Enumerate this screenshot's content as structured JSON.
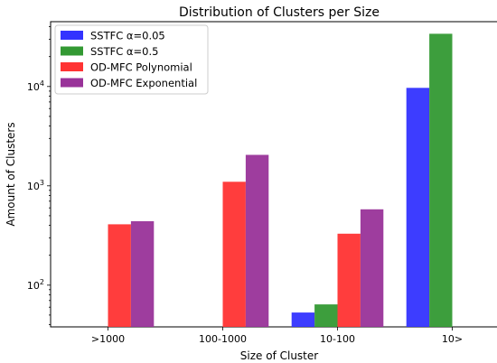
{
  "chart_data": {
    "type": "bar",
    "title": "Distribution of Clusters per Size",
    "xlabel": "Size of Cluster",
    "ylabel": "Amount of Clusters",
    "yscale": "log",
    "ylim": [
      38,
      45000
    ],
    "yticks": [
      {
        "value": 100,
        "base": "10",
        "exp": "2"
      },
      {
        "value": 1000,
        "base": "10",
        "exp": "3"
      },
      {
        "value": 10000,
        "base": "10",
        "exp": "4"
      }
    ],
    "categories": [
      ">1000",
      "100-1000",
      "10-100",
      "10>"
    ],
    "series": [
      {
        "name": "SSTFC α=0.05",
        "color": "#3333ff",
        "values": [
          null,
          null,
          53,
          9700
        ]
      },
      {
        "name": "SSTFC α=0.5",
        "color": "#339933",
        "values": [
          null,
          null,
          64,
          34000
        ]
      },
      {
        "name": "OD-MFC Polynomial",
        "color": "#ff3333",
        "values": [
          410,
          1100,
          330,
          null
        ]
      },
      {
        "name": "OD-MFC Exponential",
        "color": "#993399",
        "values": [
          440,
          2050,
          580,
          null
        ]
      }
    ],
    "legend_position": "top-left",
    "grid": false
  }
}
